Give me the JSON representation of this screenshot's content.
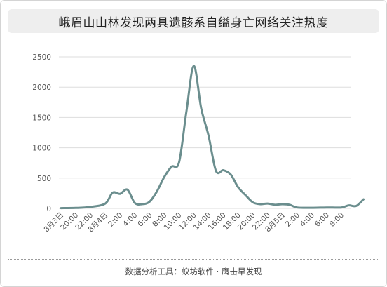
{
  "title": "峨眉山山林发现两具遗骸系自缢身亡网络关注热度",
  "source": "数据分析工具：蚁坊软件 · 鹰击早发现",
  "colors": {
    "line": "#6b8e8e",
    "grid": "#dddddd",
    "axis_text": "#555555",
    "title_bg": "#eeeeee"
  },
  "chart_data": {
    "type": "line",
    "title": "峨眉山山林发现两具遗骸系自缢身亡网络关注热度",
    "xlabel": "",
    "ylabel": "",
    "ylim": [
      0,
      2500
    ],
    "yticks": [
      0,
      500,
      1000,
      1500,
      2000,
      2500
    ],
    "grid": true,
    "legend": "none",
    "categories": [
      "8月3日",
      "20:00",
      "22:00",
      "8月4日",
      "2:00",
      "4:00",
      "6:00",
      "8:00",
      "10:00",
      "12:00",
      "14:00",
      "16:00",
      "18:00",
      "20:00",
      "22:00",
      "8月5日",
      "2:00",
      "4:00",
      "6:00",
      "8:00"
    ],
    "series": [
      {
        "values": [
          [
            0,
            5
          ],
          [
            1,
            8
          ],
          [
            2,
            25
          ],
          [
            3,
            80
          ],
          [
            3.5,
            260
          ],
          [
            4,
            240
          ],
          [
            4.5,
            310
          ],
          [
            5,
            90
          ],
          [
            5.5,
            70
          ],
          [
            6,
            110
          ],
          [
            6.5,
            280
          ],
          [
            7,
            520
          ],
          [
            7.5,
            690
          ],
          [
            8,
            760
          ],
          [
            8.5,
            1600
          ],
          [
            9,
            2350
          ],
          [
            9.5,
            1650
          ],
          [
            10,
            1200
          ],
          [
            10.5,
            620
          ],
          [
            11,
            630
          ],
          [
            11.5,
            560
          ],
          [
            12,
            350
          ],
          [
            12.5,
            220
          ],
          [
            13,
            100
          ],
          [
            13.5,
            70
          ],
          [
            14,
            80
          ],
          [
            14.5,
            60
          ],
          [
            15,
            70
          ],
          [
            15.5,
            60
          ],
          [
            16,
            15
          ],
          [
            17,
            10
          ],
          [
            18,
            15
          ],
          [
            19,
            15
          ],
          [
            19.5,
            50
          ],
          [
            20,
            40
          ],
          [
            20.5,
            150
          ]
        ]
      }
    ]
  }
}
